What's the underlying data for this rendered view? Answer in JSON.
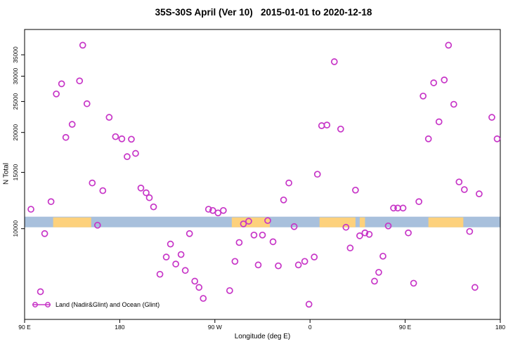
{
  "title": "35S-30S April (Ver 10)   2015-01-01 to 2020-12-18",
  "chart_data": {
    "type": "scatter",
    "title": "35S-30S April (Ver 10)   2015-01-01 to 2020-12-18",
    "xlabel": "Longitude (deg E)",
    "ylabel": "N Total",
    "x_axis": {
      "domain": [
        90,
        540
      ],
      "note": "longitude increasing eastward, wrapping 90E-180-90W-0-90E-180",
      "ticks": [
        {
          "label": "90 E",
          "lon": 90
        },
        {
          "label": "180",
          "lon": 180
        },
        {
          "label": "90 W",
          "lon": 270
        },
        {
          "label": "0",
          "lon": 360
        },
        {
          "label": "90 E",
          "lon": 450
        },
        {
          "label": "180",
          "lon": 540
        }
      ]
    },
    "y_axis": {
      "scale": "log",
      "range": [
        5200,
        42000
      ],
      "ticks": [
        {
          "label": "10000",
          "value": 10000
        },
        {
          "label": "15000",
          "value": 15000
        },
        {
          "label": "20000",
          "value": 20000
        },
        {
          "label": "25000",
          "value": 25000
        },
        {
          "label": "30000",
          "value": 30000
        },
        {
          "label": "35000",
          "value": 35000
        }
      ],
      "grid": false
    },
    "legend": {
      "label": "Land (Nadir&Glint) and Ocean (Glint)",
      "position": "bottom-left"
    },
    "map_strip": {
      "v_top": 10900,
      "v_bottom": 10100,
      "ocean_color": "#a8c0dc",
      "land_color": "#fdd17c",
      "land_segments": [
        [
          117,
          153
        ],
        [
          286,
          322
        ],
        [
          369,
          403
        ],
        [
          407,
          412
        ],
        [
          472,
          505
        ]
      ]
    },
    "series": [
      {
        "name": "Land (Nadir&Glint) and Ocean (Glint)",
        "marker": "open-circle",
        "color": "#c735c7",
        "points": [
          [
            96,
            11500
          ],
          [
            105,
            6350
          ],
          [
            109,
            9650
          ],
          [
            115,
            12150
          ],
          [
            120,
            26400
          ],
          [
            125,
            28400
          ],
          [
            129,
            19300
          ],
          [
            135,
            21200
          ],
          [
            142,
            29000
          ],
          [
            145,
            37500
          ],
          [
            149,
            24600
          ],
          [
            154,
            13900
          ],
          [
            159,
            10250
          ],
          [
            164,
            13150
          ],
          [
            170,
            22300
          ],
          [
            176,
            19400
          ],
          [
            182,
            19100
          ],
          [
            187,
            16800
          ],
          [
            191,
            19050
          ],
          [
            195,
            17200
          ],
          [
            200,
            13400
          ],
          [
            205,
            12950
          ],
          [
            208,
            12500
          ],
          [
            212,
            11700
          ],
          [
            218,
            7200
          ],
          [
            224,
            8150
          ],
          [
            228,
            8950
          ],
          [
            233,
            7750
          ],
          [
            238,
            8300
          ],
          [
            242,
            7400
          ],
          [
            246,
            9650
          ],
          [
            251,
            6850
          ],
          [
            255,
            6550
          ],
          [
            259,
            6050
          ],
          [
            264,
            11500
          ],
          [
            268,
            11400
          ],
          [
            273,
            11200
          ],
          [
            278,
            11400
          ],
          [
            284,
            6400
          ],
          [
            289,
            7900
          ],
          [
            293,
            9050
          ],
          [
            297,
            10350
          ],
          [
            302,
            10550
          ],
          [
            307,
            9550
          ],
          [
            311,
            7700
          ],
          [
            315,
            9550
          ],
          [
            320,
            10600
          ],
          [
            325,
            9100
          ],
          [
            330,
            7650
          ],
          [
            335,
            12300
          ],
          [
            340,
            13900
          ],
          [
            345,
            10150
          ],
          [
            349,
            7700
          ],
          [
            355,
            7900
          ],
          [
            359,
            5800
          ],
          [
            364,
            8150
          ],
          [
            367,
            14800
          ],
          [
            371,
            21000
          ],
          [
            376,
            21100
          ],
          [
            383,
            33300
          ],
          [
            389,
            20500
          ],
          [
            394,
            10100
          ],
          [
            398,
            8700
          ],
          [
            403,
            13200
          ],
          [
            407,
            9500
          ],
          [
            412,
            9700
          ],
          [
            416,
            9600
          ],
          [
            421,
            6850
          ],
          [
            425,
            7300
          ],
          [
            429,
            8200
          ],
          [
            434,
            10200
          ],
          [
            439,
            11600
          ],
          [
            443,
            11600
          ],
          [
            448,
            11600
          ],
          [
            453,
            9700
          ],
          [
            458,
            6750
          ],
          [
            463,
            12150
          ],
          [
            467,
            26000
          ],
          [
            472,
            19100
          ],
          [
            477,
            28600
          ],
          [
            482,
            21600
          ],
          [
            487,
            29200
          ],
          [
            491,
            37500
          ],
          [
            496,
            24500
          ],
          [
            501,
            14000
          ],
          [
            506,
            13250
          ],
          [
            511,
            9800
          ],
          [
            516,
            6550
          ],
          [
            520,
            12850
          ],
          [
            532,
            22300
          ],
          [
            537,
            19100
          ]
        ]
      }
    ]
  }
}
